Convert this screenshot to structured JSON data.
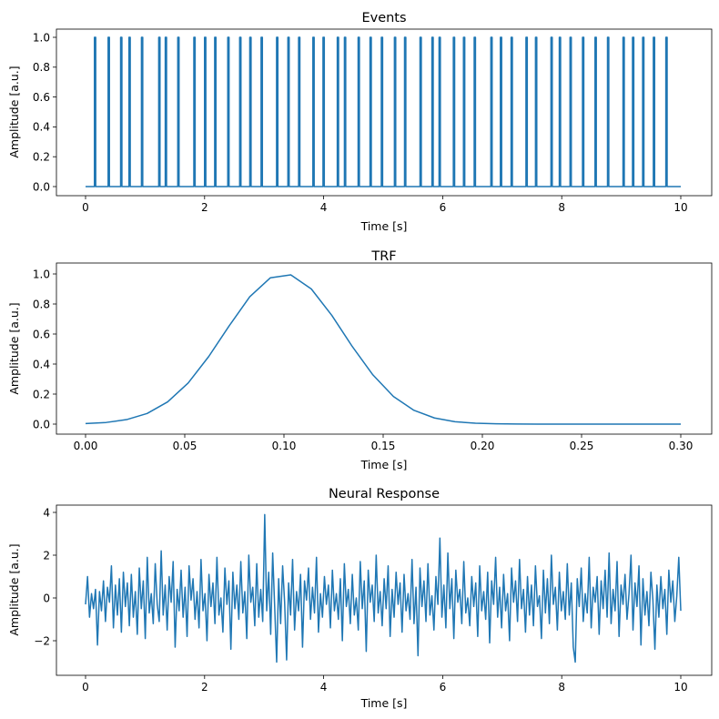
{
  "chart_data": [
    {
      "type": "line",
      "title": "Events",
      "xlabel": "Time [s]",
      "ylabel": "Amplitude [a.u.]",
      "xlim": [
        0,
        10
      ],
      "ylim": [
        0,
        1
      ],
      "xticks": [
        "0",
        "2",
        "4",
        "6",
        "8",
        "10"
      ],
      "xtick_values": [
        0,
        2,
        4,
        6,
        8,
        10
      ],
      "yticks": [
        "0.0",
        "0.2",
        "0.4",
        "0.6",
        "0.8",
        "1.0"
      ],
      "ytick_values": [
        0,
        0.2,
        0.4,
        0.6,
        0.8,
        1.0
      ],
      "grid": false,
      "color": "#1f77b4",
      "event_amplitude": 1.0,
      "event_times": [
        0.16,
        0.39,
        0.6,
        0.74,
        0.95,
        1.24,
        1.35,
        1.56,
        1.83,
        2.01,
        2.18,
        2.4,
        2.6,
        2.77,
        2.96,
        3.22,
        3.41,
        3.59,
        3.83,
        4.0,
        4.24,
        4.36,
        4.59,
        4.79,
        4.98,
        5.2,
        5.37,
        5.63,
        5.83,
        5.95,
        6.19,
        6.36,
        6.54,
        6.82,
        6.98,
        7.16,
        7.41,
        7.57,
        7.83,
        7.97,
        8.15,
        8.36,
        8.57,
        8.78,
        9.04,
        9.2,
        9.37,
        9.55,
        9.76
      ]
    },
    {
      "type": "line",
      "title": "TRF",
      "xlabel": "Time [s]",
      "ylabel": "Amplitude [a.u.]",
      "xlim": [
        0,
        0.3
      ],
      "ylim": [
        0,
        1
      ],
      "xticks": [
        "0.00",
        "0.05",
        "0.10",
        "0.15",
        "0.20",
        "0.25",
        "0.30"
      ],
      "xtick_values": [
        0,
        0.05,
        0.1,
        0.15,
        0.2,
        0.25,
        0.3
      ],
      "yticks": [
        "0.0",
        "0.2",
        "0.4",
        "0.6",
        "0.8",
        "1.0"
      ],
      "ytick_values": [
        0,
        0.2,
        0.4,
        0.6,
        0.8,
        1.0
      ],
      "grid": false,
      "color": "#1f77b4",
      "x_range": [
        0,
        0.3
      ],
      "y": [
        0.004,
        0.011,
        0.03,
        0.071,
        0.148,
        0.274,
        0.45,
        0.655,
        0.848,
        0.974,
        0.994,
        0.9,
        0.724,
        0.516,
        0.328,
        0.184,
        0.092,
        0.041,
        0.016,
        0.006,
        0.002,
        0.0005,
        0.0001,
        0,
        0,
        0,
        0,
        0,
        0,
        0
      ]
    },
    {
      "type": "line",
      "title": "Neural Response",
      "xlabel": "Time [s]",
      "ylabel": "Amplitude [a.u.]",
      "xlim": [
        0,
        10
      ],
      "ylim": [
        -3,
        4
      ],
      "xticks": [
        "0",
        "2",
        "4",
        "6",
        "8",
        "10"
      ],
      "xtick_values": [
        0,
        2,
        4,
        6,
        8,
        10
      ],
      "yticks": [
        "−2",
        "0",
        "2",
        "4"
      ],
      "ytick_values": [
        -2,
        0,
        2,
        4
      ],
      "grid": false,
      "color": "#1f77b4",
      "x_range": [
        0,
        10
      ],
      "y": [
        -0.3,
        1.0,
        -0.9,
        0.2,
        -0.5,
        0.4,
        -2.2,
        0.3,
        -0.6,
        0.8,
        -1.1,
        0.5,
        -0.2,
        1.5,
        -1.4,
        0.6,
        -0.8,
        0.9,
        -1.6,
        1.2,
        -0.4,
        0.7,
        -1.3,
        1.1,
        -0.9,
        0.3,
        -1.7,
        1.4,
        -0.5,
        0.8,
        -1.9,
        1.9,
        -0.7,
        0.2,
        -1.2,
        1.6,
        -0.3,
        -1.1,
        2.2,
        -0.8,
        0.6,
        -1.5,
        1.0,
        -0.2,
        1.7,
        -2.3,
        0.4,
        -0.6,
        1.3,
        -0.9,
        0.5,
        -1.8,
        1.5,
        -0.1,
        0.9,
        -1.0,
        0.3,
        -1.4,
        1.8,
        -0.6,
        0.2,
        -2.0,
        1.1,
        -0.4,
        0.7,
        -1.2,
        1.9,
        -0.8,
        0.0,
        -1.6,
        1.4,
        -0.3,
        0.8,
        -2.4,
        1.2,
        -0.5,
        0.6,
        -1.0,
        1.7,
        -0.7,
        0.3,
        -1.9,
        2.0,
        -0.2,
        0.5,
        -1.3,
        1.6,
        -0.9,
        0.4,
        -1.1,
        3.9,
        -0.6,
        1.2,
        -1.7,
        2.1,
        -0.4,
        -3.0,
        0.9,
        -1.2,
        1.5,
        -0.2,
        -2.9,
        0.7,
        -0.8,
        1.8,
        -1.5,
        0.3,
        -0.6,
        1.1,
        -2.3,
        0.8,
        -0.1,
        1.4,
        -1.0,
        0.5,
        -0.7,
        1.9,
        -1.6,
        0.2,
        -0.9,
        1.0,
        -0.3,
        0.6,
        -1.4,
        1.3,
        -0.6,
        0.2,
        -1.0,
        0.9,
        -2.0,
        1.6,
        -0.4,
        0.4,
        -1.2,
        1.1,
        -0.8,
        0.0,
        -1.5,
        1.7,
        -0.5,
        0.8,
        -2.5,
        1.3,
        -0.2,
        0.6,
        -1.1,
        2.0,
        -0.7,
        0.3,
        -1.3,
        0.9,
        -0.5,
        1.5,
        -1.8,
        0.4,
        -0.9,
        1.2,
        -0.3,
        0.7,
        -1.6,
        1.1,
        -0.6,
        0.2,
        -1.0,
        1.8,
        -1.2,
        0.5,
        -2.7,
        1.4,
        -0.4,
        0.8,
        -1.1,
        1.6,
        -0.8,
        0.1,
        -1.5,
        1.0,
        -0.3,
        2.8,
        -0.9,
        0.6,
        -1.4,
        2.1,
        -0.5,
        0.9,
        -1.9,
        1.3,
        -0.2,
        0.4,
        -1.2,
        1.7,
        -0.7,
        0.0,
        -1.3,
        1.0,
        -0.4,
        0.7,
        -1.8,
        1.5,
        -0.6,
        0.3,
        -1.0,
        1.2,
        -2.1,
        0.8,
        -0.3,
        1.9,
        -0.9,
        0.5,
        -1.4,
        1.1,
        -0.6,
        0.2,
        -2.0,
        1.4,
        -0.2,
        0.8,
        -1.1,
        1.8,
        -0.5,
        0.4,
        -1.6,
        1.0,
        -0.8,
        0.6,
        -1.3,
        1.5,
        -0.4,
        0.1,
        -1.9,
        1.3,
        -0.7,
        0.9,
        -1.2,
        2.0,
        -0.3,
        0.5,
        -1.5,
        1.2,
        -0.6,
        0.3,
        -1.0,
        1.6,
        -0.8,
        0.7,
        -2.3,
        -3.0,
        0.9,
        -0.4,
        1.4,
        -1.1,
        0.2,
        -0.7,
        1.9,
        -1.4,
        0.5,
        -0.2,
        1.0,
        -1.7,
        0.8,
        -0.5,
        1.3,
        -0.9,
        2.1,
        -1.2,
        0.4,
        -0.6,
        1.7,
        -1.8,
        0.6,
        -0.3,
        1.1,
        -1.0,
        0.2,
        2.0,
        -1.5,
        0.7,
        -0.4,
        1.5,
        -2.2,
        0.9,
        -0.8,
        0.3,
        -1.3,
        1.2,
        -0.1,
        -2.4,
        0.6,
        -0.9,
        1.0,
        -0.5,
        0.4,
        -1.7,
        1.3,
        -0.2,
        0.8,
        -1.1,
        0.1,
        1.9,
        -0.6
      ]
    }
  ]
}
